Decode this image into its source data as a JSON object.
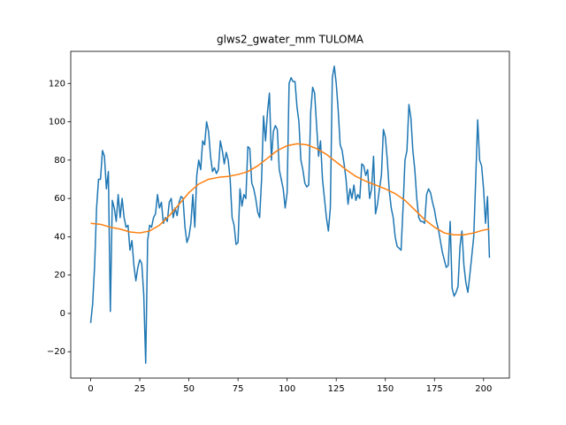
{
  "chart_data": {
    "type": "line",
    "title": "glws2_gwater_mm TULOMA",
    "xlim": [
      -10.15,
      213.15
    ],
    "ylim": [
      -33.75,
      136.75
    ],
    "xticks": [
      0,
      25,
      50,
      75,
      100,
      125,
      150,
      175,
      200
    ],
    "yticks": [
      {
        "value": -20,
        "label": "−20"
      },
      0,
      20,
      40,
      60,
      80,
      100,
      120
    ],
    "series": [
      {
        "color": "#1f77b4",
        "x": [
          0,
          1,
          2,
          3,
          4,
          5,
          6,
          7,
          8,
          9,
          10,
          11,
          12,
          13,
          14,
          15,
          16,
          17,
          18,
          19,
          20,
          21,
          22,
          23,
          24,
          25,
          26,
          27,
          28,
          29,
          30,
          31,
          32,
          33,
          34,
          35,
          36,
          37,
          38,
          39,
          40,
          41,
          42,
          43,
          44,
          45,
          46,
          47,
          48,
          49,
          50,
          51,
          52,
          53,
          54,
          55,
          56,
          57,
          58,
          59,
          60,
          61,
          62,
          63,
          64,
          65,
          66,
          67,
          68,
          69,
          70,
          71,
          72,
          73,
          74,
          75,
          76,
          77,
          78,
          79,
          80,
          81,
          82,
          83,
          84,
          85,
          86,
          87,
          88,
          89,
          90,
          91,
          92,
          93,
          94,
          95,
          96,
          97,
          98,
          99,
          100,
          101,
          102,
          103,
          104,
          105,
          106,
          107,
          108,
          109,
          110,
          111,
          112,
          113,
          114,
          115,
          116,
          117,
          118,
          119,
          120,
          121,
          122,
          123,
          124,
          125,
          126,
          127,
          128,
          129,
          130,
          131,
          132,
          133,
          134,
          135,
          136,
          137,
          138,
          139,
          140,
          141,
          142,
          143,
          144,
          145,
          146,
          147,
          148,
          149,
          150,
          151,
          152,
          153,
          154,
          155,
          156,
          157,
          158,
          159,
          160,
          161,
          162,
          163,
          164,
          165,
          166,
          167,
          168,
          169,
          170,
          171,
          172,
          173,
          174,
          175,
          176,
          177,
          178,
          179,
          180,
          181,
          182,
          183,
          184,
          185,
          186,
          187,
          188,
          189,
          190,
          191,
          192,
          193,
          194,
          195,
          196,
          197,
          198,
          199,
          200,
          201,
          202,
          203
        ],
        "values": [
          -5,
          5,
          25,
          55,
          70,
          70,
          85,
          82,
          65,
          74,
          1,
          59,
          55,
          48,
          62,
          50,
          60,
          50,
          45,
          46,
          33,
          38,
          25,
          17,
          24,
          28,
          26,
          10,
          -26,
          38,
          46,
          45,
          50,
          52,
          62,
          55,
          58,
          47,
          50,
          48,
          58,
          60,
          50,
          55,
          51,
          58,
          61,
          60,
          45,
          37,
          40,
          47,
          62,
          45,
          72,
          80,
          75,
          90,
          88,
          100,
          95,
          82,
          74,
          76,
          73,
          75,
          90,
          85,
          78,
          84,
          80,
          70,
          50,
          46,
          36,
          37,
          65,
          56,
          62,
          60,
          87,
          86,
          68,
          65,
          60,
          53,
          50,
          70,
          103,
          90,
          105,
          115,
          80,
          95,
          98,
          96,
          75,
          70,
          65,
          55,
          63,
          120,
          123,
          121,
          121,
          108,
          100,
          80,
          75,
          68,
          66,
          67,
          105,
          118,
          115,
          98,
          82,
          90,
          70,
          60,
          50,
          43,
          55,
          123,
          129,
          120,
          106,
          88,
          85,
          78,
          70,
          57,
          65,
          60,
          67,
          59,
          62,
          60,
          78,
          77,
          72,
          75,
          60,
          65,
          82,
          52,
          57,
          65,
          72,
          96,
          92,
          80,
          64,
          55,
          50,
          40,
          35,
          34,
          33,
          55,
          80,
          85,
          109,
          102,
          85,
          75,
          60,
          50,
          48,
          48,
          47,
          62,
          65,
          63,
          58,
          54,
          48,
          44,
          38,
          32,
          28,
          24,
          25,
          48,
          13,
          9,
          11,
          14,
          35,
          43,
          25,
          16,
          11,
          20,
          30,
          40,
          70,
          101,
          80,
          77,
          65,
          47,
          61,
          29
        ]
      },
      {
        "color": "#ff7f0e",
        "x": [
          0,
          5,
          10,
          15,
          20,
          25,
          30,
          35,
          40,
          45,
          50,
          55,
          60,
          65,
          70,
          75,
          80,
          85,
          90,
          95,
          100,
          105,
          110,
          115,
          120,
          125,
          130,
          135,
          140,
          145,
          150,
          155,
          160,
          165,
          170,
          175,
          180,
          185,
          190,
          195,
          200,
          203
        ],
        "values": [
          47,
          46.5,
          45,
          44,
          42.5,
          42,
          43,
          46,
          51,
          57,
          63,
          67.5,
          70,
          71,
          71.5,
          72.5,
          74,
          77,
          81,
          85,
          87.5,
          88.5,
          88,
          86,
          83,
          79,
          75,
          71.5,
          69,
          67,
          65,
          62.5,
          59,
          54,
          49,
          45,
          42,
          41,
          41,
          42,
          43.5,
          44
        ]
      }
    ]
  }
}
